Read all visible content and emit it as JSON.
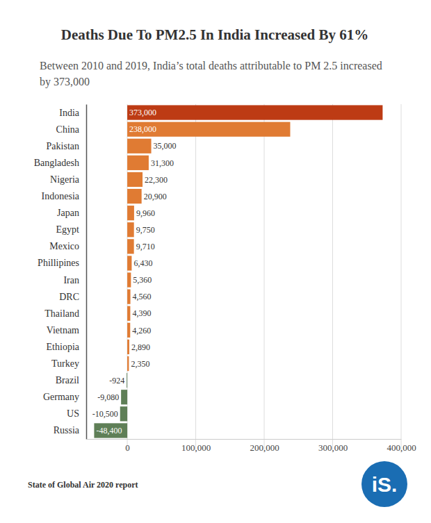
{
  "chart_data": {
    "type": "bar",
    "orientation": "horizontal",
    "title": "Deaths Due To PM2.5 In India Increased By 61%",
    "subtitle": "Between 2010 and 2019, India’s total deaths attributable to PM 2.5 increased by 373,000",
    "source": "State of Global Air 2020 report",
    "logo": "iS.",
    "categories": [
      "India",
      "China",
      "Pakistan",
      "Bangladesh",
      "Nigeria",
      "Indonesia",
      "Japan",
      "Egypt",
      "Mexico",
      "Phillipines",
      "Iran",
      "DRC",
      "Thailand",
      "Vietnam",
      "Ethiopia",
      "Turkey",
      "Brazil",
      "Germany",
      "US",
      "Russia"
    ],
    "values": [
      373000,
      238000,
      35000,
      31300,
      22300,
      20900,
      9960,
      9750,
      9710,
      6430,
      5360,
      4560,
      4390,
      4260,
      2890,
      2350,
      -924,
      -9080,
      -10500,
      -48400
    ],
    "value_labels": [
      "373,000",
      "238,000",
      "35,000",
      "31,300",
      "22,300",
      "20,900",
      "9,960",
      "9,750",
      "9,710",
      "6,430",
      "5,360",
      "4,560",
      "4,390",
      "4,260",
      "2,890",
      "2,350",
      "-924",
      "-9,080",
      "-10,500",
      "-48,400"
    ],
    "colors": [
      "#bd3b14",
      "#e07b33",
      "#e07b33",
      "#e07b33",
      "#e07b33",
      "#e07b33",
      "#e07b33",
      "#e07b33",
      "#e07b33",
      "#e07b33",
      "#e07b33",
      "#e07b33",
      "#e07b33",
      "#e07b33",
      "#e07b33",
      "#e07b33",
      "#5f7f57",
      "#5f7f57",
      "#5f7f57",
      "#5f7f57"
    ],
    "data_labels": true,
    "grid": true,
    "xlim": [
      -60000,
      400000
    ],
    "xticks": [
      0,
      {
        "value": 100000,
        "label": "100,000"
      },
      {
        "value": 200000,
        "label": "200,000"
      },
      {
        "value": 300000,
        "label": "300,000"
      },
      {
        "value": 400000,
        "label": "400,000"
      }
    ]
  }
}
